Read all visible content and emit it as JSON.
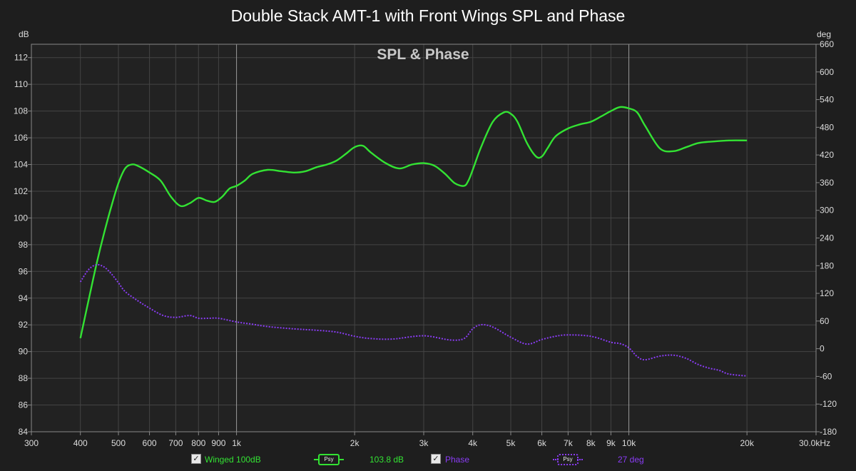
{
  "chart_data": {
    "type": "line",
    "title": "Double Stack AMT-1 with Front Wings SPL and Phase",
    "subtitle": "SPL & Phase",
    "xscale": "log",
    "xlim": [
      300,
      30000
    ],
    "x_ticks": [
      {
        "v": 300,
        "label": "300"
      },
      {
        "v": 400,
        "label": "400"
      },
      {
        "v": 500,
        "label": "500"
      },
      {
        "v": 600,
        "label": "600"
      },
      {
        "v": 700,
        "label": "700"
      },
      {
        "v": 800,
        "label": "800"
      },
      {
        "v": 900,
        "label": "900"
      },
      {
        "v": 1000,
        "label": "1k"
      },
      {
        "v": 2000,
        "label": "2k"
      },
      {
        "v": 3000,
        "label": "3k"
      },
      {
        "v": 4000,
        "label": "4k"
      },
      {
        "v": 5000,
        "label": "5k"
      },
      {
        "v": 6000,
        "label": "6k"
      },
      {
        "v": 7000,
        "label": "7k"
      },
      {
        "v": 8000,
        "label": "8k"
      },
      {
        "v": 9000,
        "label": "9k"
      },
      {
        "v": 10000,
        "label": "10k"
      },
      {
        "v": 20000,
        "label": "20k"
      },
      {
        "v": 30000,
        "label": "30.0kHz"
      }
    ],
    "ylabel_left": "dB",
    "ylim_left": [
      84,
      113
    ],
    "y_ticks_left": [
      84,
      86,
      88,
      90,
      92,
      94,
      96,
      98,
      100,
      102,
      104,
      106,
      108,
      110,
      112
    ],
    "ylabel_right": "deg",
    "ylim_right": [
      -180,
      660
    ],
    "y_ticks_right": [
      -180,
      -120,
      -60,
      0,
      60,
      120,
      180,
      240,
      300,
      360,
      420,
      480,
      540,
      600,
      660
    ],
    "grid": true,
    "series": [
      {
        "name": "Winged 100dB",
        "axis": "left",
        "color": "#33e233",
        "style": "solid",
        "x": [
          400,
          420,
          440,
          460,
          480,
          500,
          520,
          540,
          560,
          600,
          640,
          680,
          720,
          760,
          800,
          840,
          880,
          920,
          960,
          1000,
          1050,
          1100,
          1200,
          1300,
          1400,
          1500,
          1600,
          1700,
          1800,
          1900,
          2000,
          2100,
          2200,
          2400,
          2600,
          2800,
          3000,
          3200,
          3400,
          3600,
          3800,
          3900,
          4000,
          4200,
          4500,
          4800,
          5000,
          5200,
          5500,
          5800,
          6000,
          6200,
          6500,
          7000,
          7500,
          8000,
          8500,
          9000,
          9500,
          10000,
          10500,
          11000,
          12000,
          13000,
          14000,
          15000,
          16000,
          18000,
          20000
        ],
        "y": [
          91.0,
          93.9,
          96.6,
          98.9,
          100.9,
          102.6,
          103.7,
          104.0,
          103.9,
          103.4,
          102.8,
          101.6,
          100.9,
          101.1,
          101.5,
          101.3,
          101.2,
          101.6,
          102.2,
          102.4,
          102.8,
          103.3,
          103.6,
          103.5,
          103.4,
          103.5,
          103.8,
          104.0,
          104.3,
          104.8,
          105.3,
          105.4,
          104.9,
          104.1,
          103.7,
          104.0,
          104.1,
          103.9,
          103.3,
          102.6,
          102.4,
          102.8,
          103.6,
          105.3,
          107.2,
          107.9,
          107.8,
          107.2,
          105.6,
          104.6,
          104.6,
          105.2,
          106.1,
          106.7,
          107.0,
          107.2,
          107.6,
          108.0,
          108.3,
          108.2,
          107.9,
          106.9,
          105.2,
          105.0,
          105.3,
          105.6,
          105.7,
          105.8,
          105.8
        ]
      },
      {
        "name": "Phase",
        "axis": "right",
        "color": "#8a3cf5",
        "style": "dotted",
        "x": [
          400,
          420,
          440,
          460,
          480,
          500,
          520,
          560,
          600,
          650,
          700,
          760,
          800,
          850,
          900,
          1000,
          1100,
          1200,
          1400,
          1600,
          1800,
          2000,
          2200,
          2500,
          3000,
          3500,
          3800,
          4000,
          4200,
          4500,
          5000,
          5500,
          6000,
          6500,
          7000,
          8000,
          9000,
          9500,
          10000,
          10500,
          11000,
          12000,
          13000,
          14000,
          15000,
          16000,
          17000,
          18000,
          20000
        ],
        "y": [
          145,
          172,
          182,
          177,
          162,
          143,
          124,
          104,
          88,
          72,
          68,
          72,
          66,
          66,
          66,
          58,
          53,
          48,
          43,
          40,
          36,
          27,
          22,
          21,
          28,
          19,
          22,
          43,
          52,
          47,
          25,
          10,
          20,
          27,
          30,
          27,
          14,
          11,
          2,
          -17,
          -24,
          -16,
          -14,
          -21,
          -34,
          -42,
          -47,
          -55,
          -59
        ]
      }
    ],
    "legend": [
      {
        "label": "Winged 100dB",
        "checked": true,
        "swatch": "Psy",
        "readout": "103.8 dB",
        "color": "#33e233"
      },
      {
        "label": "Phase",
        "checked": true,
        "swatch": "Psy",
        "readout": "27 deg",
        "color": "#8a3cf5"
      }
    ]
  }
}
